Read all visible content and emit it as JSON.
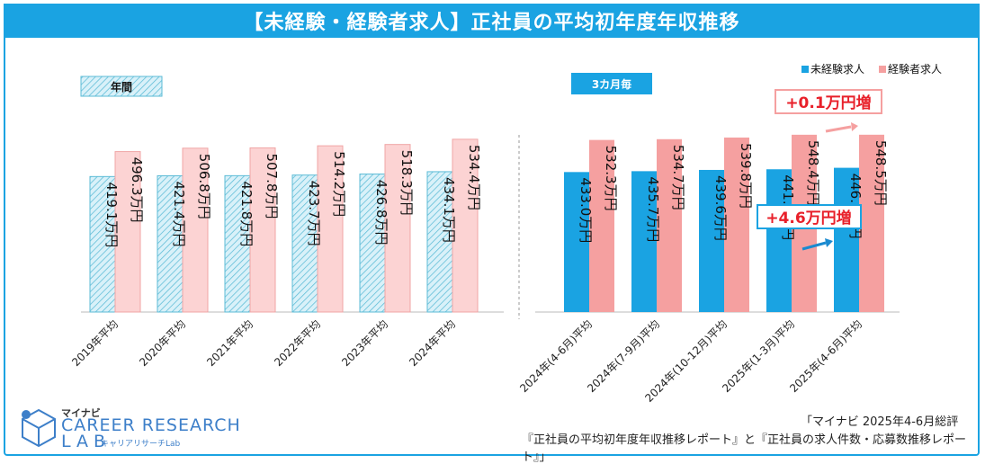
{
  "title": "【未経験・経験者求人】正社員の平均初年度年収推移",
  "chart_data": {
    "type": "bar",
    "unit": "万円",
    "groups": [
      {
        "label": "年間",
        "categories": [
          "2019年平均",
          "2020年平均",
          "2021年平均",
          "2022年平均",
          "2023年平均",
          "2024年平均"
        ]
      },
      {
        "label": "3カ月毎",
        "categories": [
          "2024年(4-6月)平均",
          "2024年(7-9月)平均",
          "2024年(10-12月)平均",
          "2025年(1-3月)平均",
          "2025年(4-6月)平均"
        ]
      }
    ],
    "series": [
      {
        "name": "未経験求人",
        "values": [
          419.1,
          421.4,
          421.8,
          423.7,
          426.8,
          434.1,
          433.0,
          435.7,
          439.6,
          441.6,
          446.2
        ]
      },
      {
        "name": "経験者求人",
        "values": [
          496.3,
          506.8,
          507.8,
          514.2,
          518.3,
          534.4,
          532.3,
          534.7,
          539.8,
          548.4,
          548.5
        ]
      }
    ],
    "data_labels": {
      "series0": [
        "419.1万円",
        "421.4万円",
        "421.8万円",
        "423.7万円",
        "426.8万円",
        "434.1万円",
        "433.0万円",
        "435.7万円",
        "439.6万円",
        "441.6万円",
        "446.2万円"
      ],
      "series1": [
        "496.3万円",
        "506.8万円",
        "507.8万円",
        "514.2万円",
        "518.3万円",
        "534.4万円",
        "532.3万円",
        "534.7万円",
        "539.8万円",
        "548.4万円",
        "548.5万円"
      ]
    },
    "annotations": [
      {
        "text": "+0.1万円増",
        "series": "経験者求人"
      },
      {
        "text": "+4.6万円増",
        "series": "未経験求人"
      }
    ],
    "legend_position": "top-right"
  },
  "colors": {
    "unexp_annual": "#d9f1f9",
    "unexp_annual_stripe": "#5bbbd6",
    "unexp_quarter": "#1aa3e2",
    "exp_annual": "#fcd3d3",
    "exp_quarter": "#f5a0a0",
    "annot_red": "#e8202a",
    "annot_blue": "#1a8ad0"
  },
  "footer": {
    "source_line1": "「マイナビ 2025年4-6月総評",
    "source_line2": "『正社員の平均初年度年収推移レポート』と『正社員の求人件数・応募数推移レポート』」",
    "logo_brand": "マイナビ",
    "logo_line1": "CAREER RESEARCH",
    "logo_line2": "LAB",
    "logo_sub": "キャリアリサーチLab"
  }
}
